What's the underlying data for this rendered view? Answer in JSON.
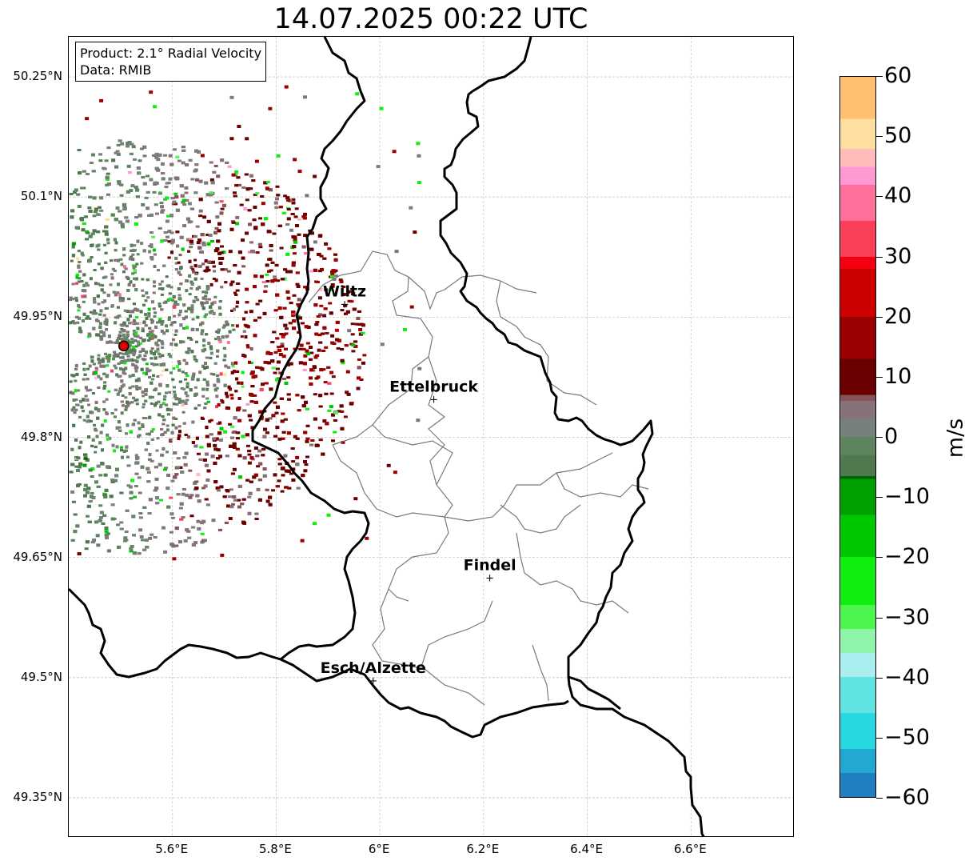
{
  "title": "14.07.2025 00:22 UTC",
  "info": {
    "product": "Product: 2.1° Radial Velocity",
    "data": "Data: RMIB"
  },
  "axes": {
    "lon_range": [
      5.4,
      6.8
    ],
    "lat_range": [
      49.3,
      50.3
    ],
    "lat_ticks": [
      {
        "value": 50.25,
        "label": "50.25°N"
      },
      {
        "value": 50.1,
        "label": "50.1°N"
      },
      {
        "value": 49.95,
        "label": "49.95°N"
      },
      {
        "value": 49.8,
        "label": "49.8°N"
      },
      {
        "value": 49.65,
        "label": "49.65°N"
      },
      {
        "value": 49.5,
        "label": "49.5°N"
      },
      {
        "value": 49.35,
        "label": "49.35°N"
      }
    ],
    "lon_ticks": [
      {
        "value": 5.6,
        "label": "5.6°E"
      },
      {
        "value": 5.8,
        "label": "5.8°E"
      },
      {
        "value": 6.0,
        "label": "6°E"
      },
      {
        "value": 6.2,
        "label": "6.2°E"
      },
      {
        "value": 6.4,
        "label": "6.4°E"
      },
      {
        "value": 6.6,
        "label": "6.6°E"
      }
    ]
  },
  "radar_site": {
    "lon": 5.506,
    "lat": 49.914,
    "color": "#e00000"
  },
  "cities": [
    {
      "name": "Wiltz",
      "lon": 5.932,
      "lat": 49.966
    },
    {
      "name": "Ettelbruck",
      "lon": 6.104,
      "lat": 49.847
    },
    {
      "name": "Findel",
      "lon": 6.212,
      "lat": 49.624
    },
    {
      "name": "Esch/Alzette",
      "lon": 5.987,
      "lat": 49.496
    }
  ],
  "colorbar": {
    "unit": "m/s",
    "min": -60,
    "max": 60,
    "ticks": [
      {
        "value": 60,
        "label": "60"
      },
      {
        "value": 50,
        "label": "50"
      },
      {
        "value": 40,
        "label": "40"
      },
      {
        "value": 30,
        "label": "30"
      },
      {
        "value": 20,
        "label": "20"
      },
      {
        "value": 10,
        "label": "10"
      },
      {
        "value": 0,
        "label": "0"
      },
      {
        "value": -10,
        "label": "−10"
      },
      {
        "value": -20,
        "label": "−20"
      },
      {
        "value": -30,
        "label": "−30"
      },
      {
        "value": -40,
        "label": "−40"
      },
      {
        "value": -50,
        "label": "−50"
      },
      {
        "value": -60,
        "label": "−60"
      }
    ],
    "stops": [
      {
        "v": -60,
        "c": "#1f7fc0"
      },
      {
        "v": -56,
        "c": "#22a9cf"
      },
      {
        "v": -52,
        "c": "#27d8e0"
      },
      {
        "v": -46,
        "c": "#5fe3e3"
      },
      {
        "v": -40,
        "c": "#aaeef0"
      },
      {
        "v": -36,
        "c": "#8ef5aa"
      },
      {
        "v": -32,
        "c": "#4cf64c"
      },
      {
        "v": -28,
        "c": "#10ee10"
      },
      {
        "v": -20,
        "c": "#00c800"
      },
      {
        "v": -13,
        "c": "#00a000"
      },
      {
        "v": -7,
        "c": "#006400"
      },
      {
        "v": -6.5,
        "c": "#4f7a4f"
      },
      {
        "v": -3,
        "c": "#5f8560"
      },
      {
        "v": 0,
        "c": "#77807a"
      },
      {
        "v": 3,
        "c": "#867278"
      },
      {
        "v": 6,
        "c": "#875258"
      },
      {
        "v": 7,
        "c": "#6a0000"
      },
      {
        "v": 13,
        "c": "#9a0000"
      },
      {
        "v": 20,
        "c": "#cc0000"
      },
      {
        "v": 28,
        "c": "#f40012"
      },
      {
        "v": 30,
        "c": "#fa4058"
      },
      {
        "v": 36,
        "c": "#ff6f9a"
      },
      {
        "v": 42,
        "c": "#ff99d3"
      },
      {
        "v": 45,
        "c": "#ffbaba"
      },
      {
        "v": 48,
        "c": "#ffdfa0"
      },
      {
        "v": 53,
        "c": "#ffc06f"
      },
      {
        "v": 60,
        "c": "#ff9a4f"
      }
    ]
  }
}
